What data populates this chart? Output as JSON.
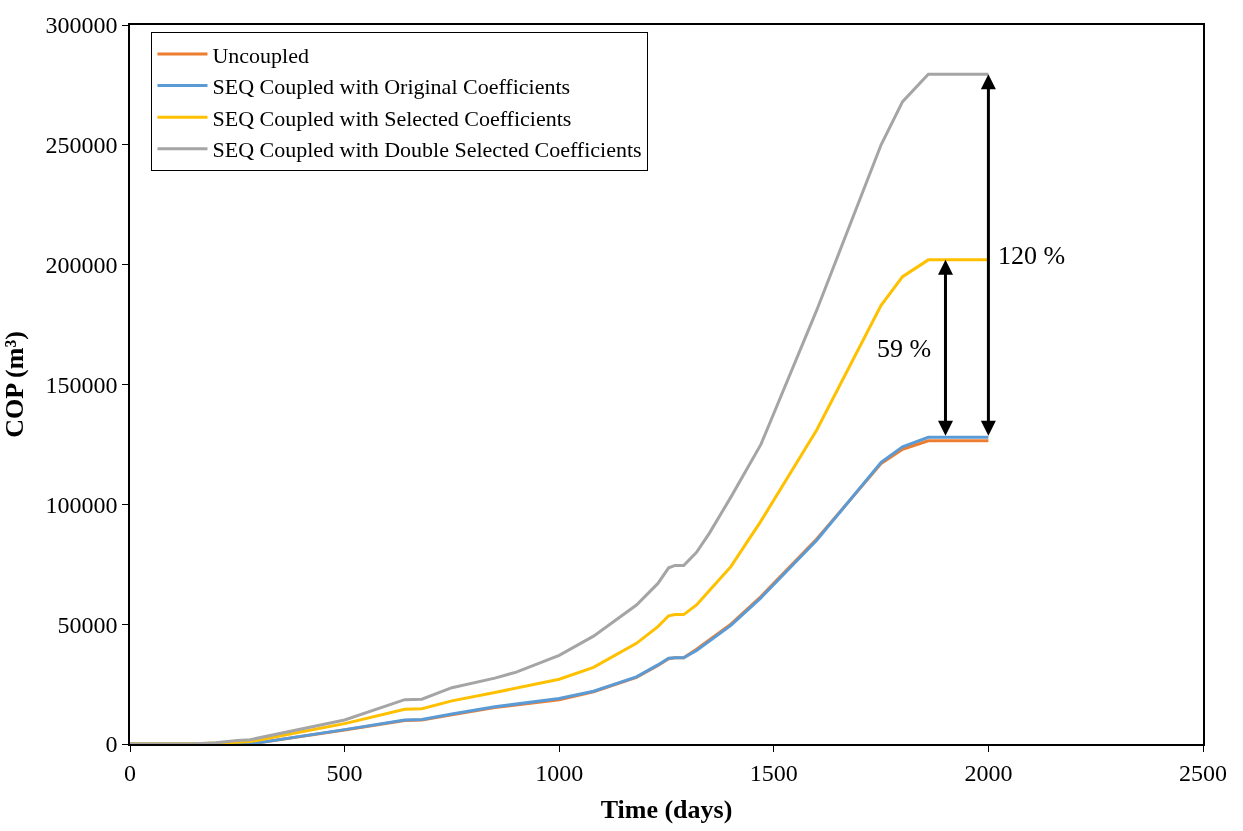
{
  "chart_data": {
    "type": "line",
    "xlabel": "Time (days)",
    "ylabel": "COP (m³)",
    "xlim": [
      0,
      2500
    ],
    "xticks": [
      0,
      500,
      1000,
      1500,
      2000,
      2500
    ],
    "ylim": [
      0,
      300000
    ],
    "yticks": [
      0,
      50000,
      100000,
      150000,
      200000,
      250000,
      300000
    ],
    "legend": "top left",
    "marker": "none",
    "line_style": "solid",
    "annotations": [
      "59 %",
      "120 %"
    ],
    "series": [
      {
        "name": "Uncoupled",
        "color": "#ed7d31",
        "x": [
          0,
          280,
          500,
          640,
          680,
          750,
          850,
          1000,
          1080,
          1180,
          1230,
          1255,
          1270,
          1290,
          1320,
          1400,
          1470,
          1600,
          1750,
          1800,
          1860,
          2000
        ],
        "values": [
          0,
          0,
          5800,
          9800,
          10000,
          12200,
          15200,
          18500,
          21800,
          27800,
          32800,
          35600,
          36000,
          36000,
          39500,
          50000,
          61500,
          85500,
          117000,
          123000,
          126500,
          126500
        ]
      },
      {
        "name": "SEQ Coupled with Original Coefficients",
        "color": "#5b9bd5",
        "x": [
          0,
          280,
          500,
          640,
          680,
          750,
          850,
          1000,
          1080,
          1180,
          1230,
          1255,
          1270,
          1290,
          1320,
          1400,
          1470,
          1600,
          1750,
          1800,
          1860,
          2000
        ],
        "values": [
          0,
          0,
          6000,
          10000,
          10200,
          12500,
          15500,
          19000,
          22000,
          28000,
          33000,
          35800,
          36000,
          36000,
          39000,
          49500,
          61000,
          85000,
          117500,
          124000,
          128000,
          128000
        ]
      },
      {
        "name": "SEQ Coupled with Selected Coefficients",
        "color": "#ffc000",
        "x": [
          0,
          140,
          250,
          280,
          500,
          640,
          680,
          750,
          850,
          1000,
          1080,
          1180,
          1230,
          1255,
          1270,
          1290,
          1320,
          1350,
          1400,
          1470,
          1600,
          1750,
          1800,
          1860,
          2000
        ],
        "values": [
          0,
          0,
          700,
          1000,
          8500,
          14500,
          14700,
          18000,
          21500,
          27000,
          32000,
          42000,
          49000,
          53500,
          54000,
          54000,
          58000,
          64000,
          74000,
          93000,
          131000,
          183000,
          195000,
          202000,
          202000
        ]
      },
      {
        "name": "SEQ Coupled with Double Selected Coefficients",
        "color": "#a5a5a5",
        "x": [
          0,
          140,
          200,
          250,
          280,
          500,
          640,
          680,
          750,
          850,
          900,
          1000,
          1080,
          1180,
          1230,
          1255,
          1270,
          1290,
          1320,
          1350,
          1400,
          1470,
          1600,
          1750,
          1800,
          1860,
          2000
        ],
        "values": [
          0,
          0,
          500,
          1500,
          1800,
          10000,
          18500,
          18700,
          23500,
          27500,
          30000,
          37000,
          45000,
          58000,
          67000,
          73500,
          74500,
          74500,
          80000,
          88000,
          103000,
          125000,
          181000,
          250000,
          268000,
          279500,
          279500
        ]
      }
    ]
  }
}
